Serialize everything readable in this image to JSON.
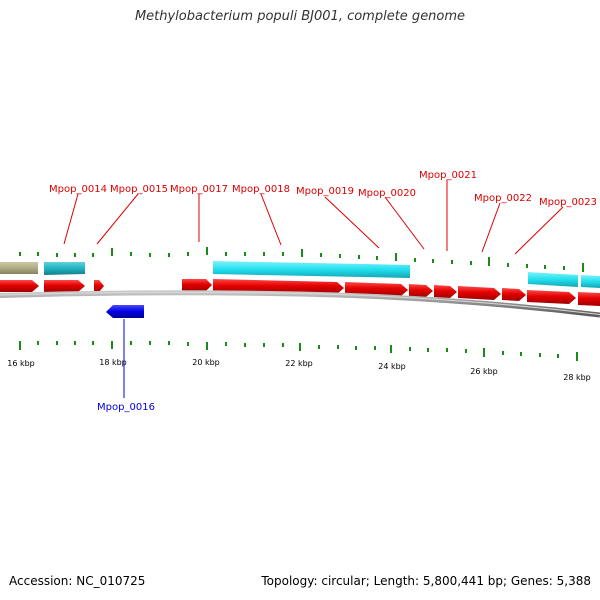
{
  "title": "Methylobacterium populi BJ001, complete genome",
  "footer": {
    "accession": "Accession: NC_010725",
    "summary": "Topology: circular; Length: 5,800,441 bp; Genes: 5,388"
  },
  "colors": {
    "forward_gene": "#e00000",
    "reverse_gene": "#0000dd",
    "teal_feature": "#22b3c2",
    "cyan_feature": "#22dfee",
    "khaki_feature": "#b0ad84",
    "tick": "#1a8a1a",
    "backbone": "#8a8a8a"
  },
  "ticks": [
    "16 kbp",
    "18 kbp",
    "20 kbp",
    "22 kbp",
    "24 kbp",
    "26 kbp",
    "28 kbp"
  ],
  "gene_labels": {
    "forward": [
      "Mpop_0014",
      "Mpop_0015",
      "Mpop_0017",
      "Mpop_0018",
      "Mpop_0019",
      "Mpop_0020",
      "Mpop_0021",
      "Mpop_0022",
      "Mpop_0023"
    ],
    "reverse": [
      "Mpop_0016"
    ]
  }
}
